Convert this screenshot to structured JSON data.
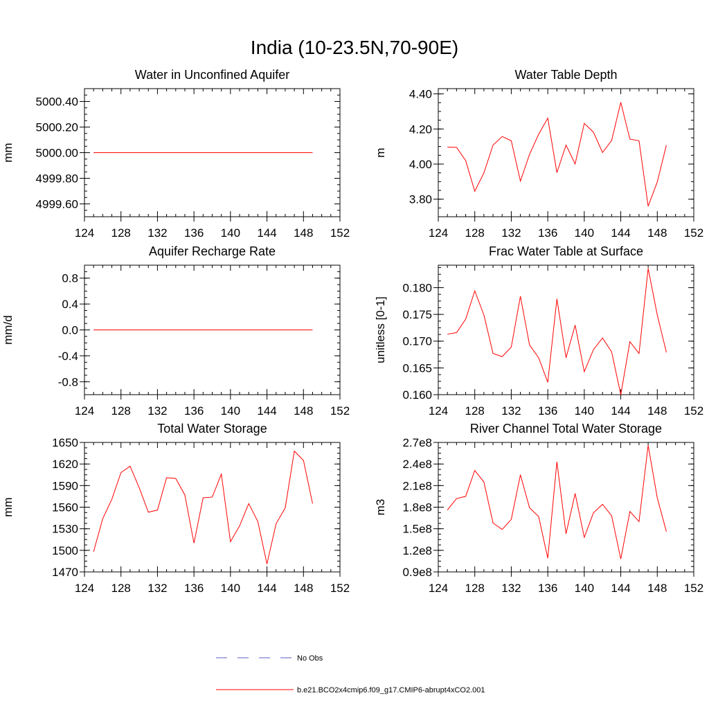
{
  "title": "India (10-23.5N,70-90E)",
  "colors": {
    "model": "#ff0000",
    "obs": "#5b5bc8",
    "axis": "#000000"
  },
  "legend": {
    "placement": "bottom-center",
    "entries": [
      {
        "label": "No Obs",
        "style": "dashed",
        "color": "#5b5bc8"
      },
      {
        "label": "b.e21.BCO2x4cmip6.f09_g17.CMIP6-abrupt4xCO2.001",
        "style": "solid",
        "color": "#ff0000"
      }
    ]
  },
  "chart_data": [
    {
      "type": "line",
      "title": "Water in Unconfined Aquifer",
      "ylabel": "mm",
      "xlim": [
        124,
        152
      ],
      "ylim": [
        4999.5,
        5000.5
      ],
      "xticks": [
        "124",
        "128",
        "132",
        "136",
        "140",
        "144",
        "148",
        "152"
      ],
      "yticks": [
        {
          "value": 4999.6,
          "label": "4999.60"
        },
        {
          "value": 4999.8,
          "label": "4999.80"
        },
        {
          "value": 5000.0,
          "label": "5000.00"
        },
        {
          "value": 5000.2,
          "label": "5000.20"
        },
        {
          "value": 5000.4,
          "label": "5000.40"
        }
      ],
      "x": [
        125,
        126,
        127,
        128,
        129,
        130,
        131,
        132,
        133,
        134,
        135,
        136,
        137,
        138,
        139,
        140,
        141,
        142,
        143,
        144,
        145,
        146,
        147,
        148,
        149
      ],
      "series": [
        {
          "values": [
            5000,
            5000,
            5000,
            5000,
            5000,
            5000,
            5000,
            5000,
            5000,
            5000,
            5000,
            5000,
            5000,
            5000,
            5000,
            5000,
            5000,
            5000,
            5000,
            5000,
            5000,
            5000,
            5000,
            5000,
            5000
          ]
        }
      ]
    },
    {
      "type": "line",
      "title": "Water Table Depth",
      "ylabel": "m",
      "xlim": [
        124,
        152
      ],
      "ylim": [
        3.7,
        4.43
      ],
      "xticks": [
        "124",
        "128",
        "132",
        "136",
        "140",
        "144",
        "148",
        "152"
      ],
      "yticks": [
        {
          "value": 3.8,
          "label": "3.80"
        },
        {
          "value": 4.0,
          "label": "4.00"
        },
        {
          "value": 4.2,
          "label": "4.20"
        },
        {
          "value": 4.4,
          "label": "4.40"
        }
      ],
      "x": [
        125,
        126,
        127,
        128,
        129,
        130,
        131,
        132,
        133,
        134,
        135,
        136,
        137,
        138,
        139,
        140,
        141,
        142,
        143,
        144,
        145,
        146,
        147,
        148,
        149
      ],
      "series": [
        {
          "values": [
            4.097,
            4.095,
            4.02,
            3.845,
            3.95,
            4.108,
            4.157,
            4.133,
            3.903,
            4.055,
            4.17,
            4.262,
            3.951,
            4.108,
            4.001,
            4.232,
            4.182,
            4.066,
            4.135,
            4.352,
            4.142,
            4.133,
            3.76,
            3.898,
            4.108
          ]
        }
      ]
    },
    {
      "type": "line",
      "title": "Aquifer Recharge Rate",
      "ylabel": "mm/d",
      "xlim": [
        124,
        152
      ],
      "ylim": [
        -1.0,
        1.0
      ],
      "xticks": [
        "124",
        "128",
        "132",
        "136",
        "140",
        "144",
        "148",
        "152"
      ],
      "yticks": [
        {
          "value": -0.8,
          "label": "-0.8"
        },
        {
          "value": -0.4,
          "label": "-0.4"
        },
        {
          "value": 0.0,
          "label": "0.0"
        },
        {
          "value": 0.4,
          "label": "0.4"
        },
        {
          "value": 0.8,
          "label": "0.8"
        }
      ],
      "x": [
        125,
        126,
        127,
        128,
        129,
        130,
        131,
        132,
        133,
        134,
        135,
        136,
        137,
        138,
        139,
        140,
        141,
        142,
        143,
        144,
        145,
        146,
        147,
        148,
        149
      ],
      "series": [
        {
          "values": [
            0,
            0,
            0,
            0,
            0,
            0,
            0,
            0,
            0,
            0,
            0,
            0,
            0,
            0,
            0,
            0,
            0,
            0,
            0,
            0,
            0,
            0,
            0,
            0,
            0
          ]
        }
      ]
    },
    {
      "type": "line",
      "title": "Frac Water Table at Surface",
      "ylabel": "unitless [0-1]",
      "xlim": [
        124,
        152
      ],
      "ylim": [
        0.16,
        0.1842
      ],
      "xticks": [
        "124",
        "128",
        "132",
        "136",
        "140",
        "144",
        "148",
        "152"
      ],
      "yticks": [
        {
          "value": 0.16,
          "label": "0.160"
        },
        {
          "value": 0.165,
          "label": "0.165"
        },
        {
          "value": 0.17,
          "label": "0.170"
        },
        {
          "value": 0.175,
          "label": "0.175"
        },
        {
          "value": 0.18,
          "label": "0.180"
        }
      ],
      "x": [
        125,
        126,
        127,
        128,
        129,
        130,
        131,
        132,
        133,
        134,
        135,
        136,
        137,
        138,
        139,
        140,
        141,
        142,
        143,
        144,
        145,
        146,
        147,
        148,
        149
      ],
      "series": [
        {
          "values": [
            0.1713,
            0.1716,
            0.1741,
            0.1794,
            0.1749,
            0.1677,
            0.1671,
            0.1689,
            0.1784,
            0.1693,
            0.1669,
            0.1623,
            0.1779,
            0.1669,
            0.173,
            0.1643,
            0.1684,
            0.1706,
            0.168,
            0.16,
            0.1699,
            0.1677,
            0.1836,
            0.1749,
            0.1679
          ]
        }
      ]
    },
    {
      "type": "line",
      "title": "Total Water Storage",
      "ylabel": "mm",
      "xlim": [
        124,
        152
      ],
      "ylim": [
        1470,
        1650
      ],
      "xticks": [
        "124",
        "128",
        "132",
        "136",
        "140",
        "144",
        "148",
        "152"
      ],
      "yticks": [
        {
          "value": 1470,
          "label": "1470"
        },
        {
          "value": 1500,
          "label": "1500"
        },
        {
          "value": 1530,
          "label": "1530"
        },
        {
          "value": 1560,
          "label": "1560"
        },
        {
          "value": 1590,
          "label": "1590"
        },
        {
          "value": 1620,
          "label": "1620"
        },
        {
          "value": 1650,
          "label": "1650"
        }
      ],
      "x": [
        125,
        126,
        127,
        128,
        129,
        130,
        131,
        132,
        133,
        134,
        135,
        136,
        137,
        138,
        139,
        140,
        141,
        142,
        143,
        144,
        145,
        146,
        147,
        148,
        149
      ],
      "series": [
        {
          "values": [
            1498,
            1544,
            1571,
            1608,
            1617,
            1587,
            1553,
            1556,
            1601,
            1600,
            1577,
            1510,
            1573,
            1574,
            1606,
            1512,
            1534,
            1565,
            1540,
            1481,
            1537,
            1559,
            1638,
            1625,
            1565
          ]
        }
      ]
    },
    {
      "type": "line",
      "title": "River Channel Total Water Storage",
      "ylabel": "m3",
      "xlim": [
        124,
        152
      ],
      "ylim": [
        90000000.0,
        270000000.0
      ],
      "xticks": [
        "124",
        "128",
        "132",
        "136",
        "140",
        "144",
        "148",
        "152"
      ],
      "yticks": [
        {
          "value": 90000000.0,
          "label": "0.9e8"
        },
        {
          "value": 120000000.0,
          "label": "1.2e8"
        },
        {
          "value": 150000000.0,
          "label": "1.5e8"
        },
        {
          "value": 180000000.0,
          "label": "1.8e8"
        },
        {
          "value": 210000000.0,
          "label": "2.1e8"
        },
        {
          "value": 240000000.0,
          "label": "2.4e8"
        },
        {
          "value": 270000000.0,
          "label": "2.7e8"
        }
      ],
      "x": [
        125,
        126,
        127,
        128,
        129,
        130,
        131,
        132,
        133,
        134,
        135,
        136,
        137,
        138,
        139,
        140,
        141,
        142,
        143,
        144,
        145,
        146,
        147,
        148,
        149
      ],
      "series": [
        {
          "values": [
            176000000.0,
            192000000.0,
            195000000.0,
            231000000.0,
            215000000.0,
            158000000.0,
            149000000.0,
            163000000.0,
            225000000.0,
            179000000.0,
            167000000.0,
            109000000.0,
            243000000.0,
            143000000.0,
            199000000.0,
            138000000.0,
            172000000.0,
            184000000.0,
            168000000.0,
            108000000.0,
            174000000.0,
            160000000.0,
            266000000.0,
            193000000.0,
            146000000.0
          ]
        }
      ]
    }
  ]
}
